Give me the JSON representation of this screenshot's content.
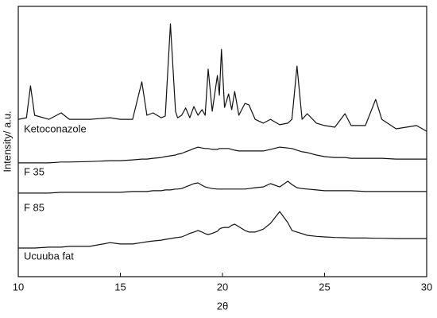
{
  "chart_data": {
    "type": "line",
    "x_label": "2θ",
    "y_label": "Intensity/ a.u.",
    "x": [
      10,
      10.4,
      10.6,
      10.8,
      11.5,
      12.1,
      12.5,
      13.5,
      14.5,
      15,
      15.6,
      16.05,
      16.3,
      16.6,
      17,
      17.2,
      17.45,
      17.7,
      17.8,
      18,
      18.2,
      18.4,
      18.6,
      18.8,
      19.0,
      19.15,
      19.3,
      19.5,
      19.75,
      19.85,
      19.95,
      20.1,
      20.3,
      20.45,
      20.6,
      20.8,
      21.1,
      21.3,
      21.6,
      22,
      22.35,
      22.8,
      23.2,
      23.4,
      23.65,
      23.9,
      24.15,
      24.6,
      25,
      25.5,
      26,
      26.3,
      27,
      27.5,
      27.8,
      28.5,
      29,
      29.5,
      30
    ],
    "series": [
      {
        "name": "Ketoconazole",
        "color": "#111111",
        "values": [
          58.2,
          58.8,
          70.6,
          59.7,
          58.2,
          60.6,
          58.2,
          58.2,
          58.8,
          58.2,
          58.2,
          72.1,
          59.7,
          60.6,
          58.8,
          59.4,
          93.5,
          61.2,
          58.8,
          59.7,
          62.4,
          58.8,
          62.9,
          59.7,
          61.8,
          59.7,
          76.8,
          61.2,
          74.4,
          67.1,
          84.1,
          62.6,
          67.6,
          61.8,
          68.5,
          59.7,
          64.1,
          63.5,
          58.2,
          56.8,
          58.2,
          56.2,
          56.8,
          58.2,
          77.9,
          58.2,
          60.3,
          56.8,
          55.9,
          55.3,
          60.3,
          55.9,
          55.9,
          65.6,
          58.2,
          54.7,
          55.3,
          55.9,
          53.8
        ]
      },
      {
        "name": "F 35",
        "color": "#111111",
        "values": [
          42.1,
          42.1,
          42.1,
          42.1,
          42.1,
          42.4,
          42.4,
          42.6,
          42.9,
          42.9,
          43.2,
          43.5,
          43.5,
          43.8,
          44.1,
          44.4,
          44.7,
          45.0,
          45.3,
          45.6,
          46.2,
          46.8,
          47.4,
          47.9,
          47.6,
          47.4,
          47.4,
          47.1,
          47.1,
          47.4,
          47.4,
          47.4,
          47.4,
          47.1,
          46.8,
          46.5,
          46.5,
          46.5,
          46.5,
          46.5,
          47.1,
          47.9,
          47.6,
          47.4,
          46.8,
          46.2,
          45.9,
          45.0,
          44.4,
          44.1,
          44.1,
          43.8,
          43.8,
          43.8,
          43.8,
          43.5,
          43.5,
          43.5,
          43.5
        ]
      },
      {
        "name": "F 85",
        "color": "#111111",
        "values": [
          30.9,
          30.9,
          30.9,
          30.9,
          30.9,
          31.2,
          31.2,
          31.2,
          31.2,
          31.2,
          31.5,
          31.5,
          31.5,
          31.8,
          31.8,
          32.1,
          32.1,
          32.4,
          32.4,
          32.6,
          33.2,
          33.8,
          34.4,
          34.7,
          33.8,
          33.2,
          32.9,
          32.6,
          32.4,
          32.4,
          32.4,
          32.4,
          32.4,
          32.4,
          32.4,
          32.4,
          32.4,
          32.6,
          32.9,
          33.2,
          34.4,
          33.2,
          35.3,
          34.1,
          32.9,
          32.6,
          32.4,
          32.1,
          31.8,
          31.8,
          31.8,
          31.8,
          31.5,
          31.5,
          31.5,
          31.5,
          31.5,
          31.5,
          31.5
        ]
      },
      {
        "name": "Ucuuba fat",
        "color": "#111111",
        "values": [
          10.6,
          10.6,
          10.6,
          10.6,
          10.9,
          10.9,
          11.2,
          11.2,
          12.6,
          12.1,
          12.1,
          12.6,
          12.9,
          13.2,
          13.5,
          13.8,
          14.1,
          14.4,
          14.5,
          14.7,
          15.3,
          16.0,
          16.5,
          17.1,
          16.5,
          15.9,
          15.6,
          16.0,
          16.8,
          17.6,
          18.0,
          18.2,
          18.2,
          19.0,
          19.4,
          18.5,
          17.1,
          16.5,
          16.5,
          17.6,
          19.7,
          24.1,
          20.0,
          17.1,
          16.5,
          15.9,
          15.3,
          14.9,
          14.7,
          14.5,
          14.4,
          14.3,
          14.3,
          14.2,
          14.2,
          14.1,
          14.1,
          14.1,
          14.1
        ]
      }
    ],
    "xlim": [
      10,
      30
    ],
    "xticks": [
      10,
      15,
      20,
      25,
      30
    ],
    "ylim": [
      0,
      100
    ]
  }
}
